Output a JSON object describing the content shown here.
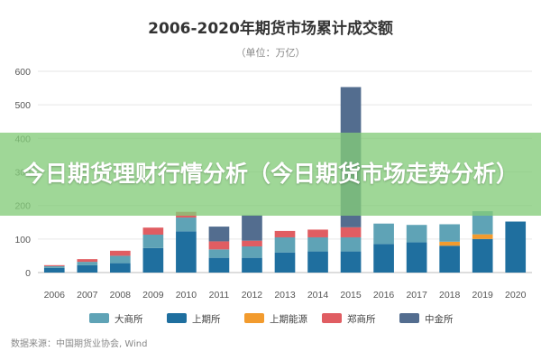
{
  "chart_data": {
    "type": "bar",
    "stacked": true,
    "title": "2006-2020年期货市场累计成交额",
    "subtitle": "（单位：万亿）",
    "categories": [
      "2006",
      "2007",
      "2008",
      "2009",
      "2010",
      "2011",
      "2012",
      "2013",
      "2014",
      "2015",
      "2016",
      "2017",
      "2018",
      "2019",
      "2020"
    ],
    "ylim": [
      0,
      600
    ],
    "yticks": [
      0,
      100,
      200,
      300,
      400,
      500,
      600
    ],
    "grid": true,
    "legend_position": "bottom",
    "series": [
      {
        "name": "上期所",
        "color": "#1f6f9f",
        "values": [
          14,
          22,
          28,
          73,
          123,
          44,
          44,
          60,
          63,
          63,
          85,
          90,
          80,
          100,
          152
        ]
      },
      {
        "name": "上期能源",
        "color": "#f29b2e",
        "values": [
          0,
          0,
          0,
          0,
          0,
          0,
          0,
          0,
          0,
          0,
          0,
          0,
          12,
          14,
          0
        ]
      },
      {
        "name": "大商所",
        "color": "#5fa3b6",
        "values": [
          5,
          10,
          22,
          40,
          41,
          25,
          34,
          45,
          42,
          42,
          61,
          52,
          52,
          69,
          0
        ]
      },
      {
        "name": "郑商所",
        "color": "#e05d62",
        "values": [
          3,
          8,
          15,
          21,
          17,
          24,
          17,
          19,
          23,
          30,
          0,
          0,
          0,
          0,
          0
        ]
      },
      {
        "name": "中金所",
        "color": "#536d8f",
        "values": [
          0,
          0,
          0,
          0,
          0,
          44,
          76,
          0,
          0,
          418,
          0,
          0,
          0,
          0,
          0
        ]
      }
    ]
  },
  "legend": [
    {
      "name": "大商所",
      "color": "#5fa3b6"
    },
    {
      "name": "上期所",
      "color": "#1f6f9f"
    },
    {
      "name": "上期能源",
      "color": "#f29b2e"
    },
    {
      "name": "郑商所",
      "color": "#e05d62"
    },
    {
      "name": "中金所",
      "color": "#536d8f"
    }
  ],
  "source": "数据来源：中国期货业协会, Wind",
  "overlay_title": "今日期货理财行情分析（今日期货市场走势分析）"
}
